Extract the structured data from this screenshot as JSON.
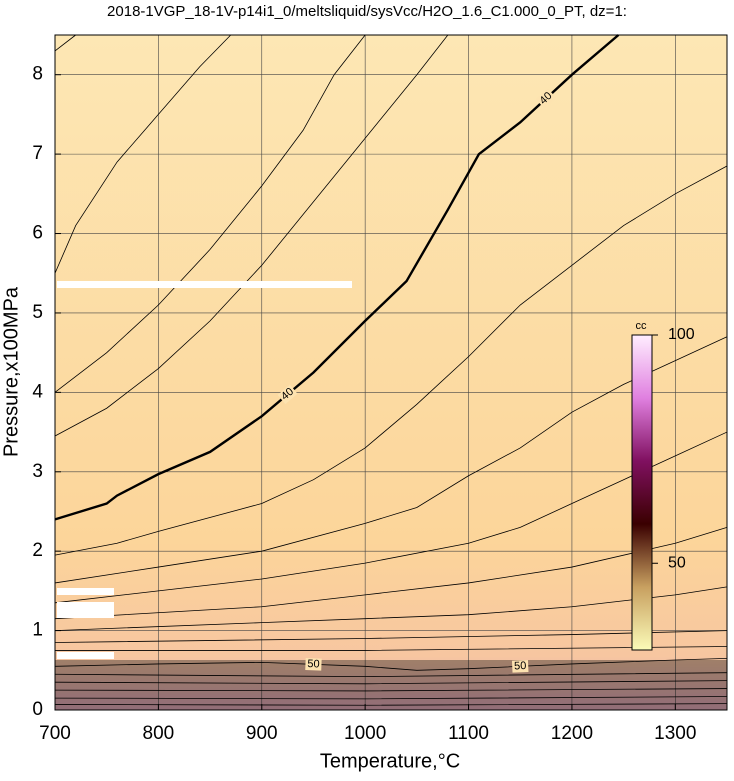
{
  "chart_data": {
    "type": "contour",
    "title": "2018-1VGP_18-1V-p14i1_0/meltsliquid/sysVcc/H2O_1.6_C1.000_0_PT, dz=1:",
    "x_label": "Temperature,°C",
    "y_label": "Pressure,x100MPa",
    "xlim": [
      700,
      1350
    ],
    "xticks": [
      700,
      800,
      900,
      1000,
      1100,
      1200,
      1300
    ],
    "ylim": [
      0,
      8.5
    ],
    "yticks": [
      0,
      1,
      2,
      3,
      4,
      5,
      6,
      7,
      8
    ],
    "grid": true,
    "contours": [
      {
        "level": 40,
        "x": [
          700,
          750,
          760,
          800,
          850,
          900,
          950,
          1000,
          1040,
          1080,
          1110,
          1150,
          1200,
          1245
        ],
        "y": [
          2.4,
          2.6,
          2.7,
          2.97,
          3.25,
          3.7,
          4.25,
          4.9,
          5.4,
          6.3,
          7.0,
          7.4,
          8.0,
          8.5
        ]
      },
      {
        "level": 50,
        "x": [
          700,
          800,
          900,
          1000,
          1050,
          1100,
          1200,
          1300,
          1350
        ],
        "y": [
          0.55,
          0.58,
          0.6,
          0.55,
          0.5,
          0.52,
          0.58,
          0.63,
          0.65
        ]
      },
      {
        "x": [
          700,
          720,
          760,
          800,
          840,
          870
        ],
        "y": [
          5.5,
          6.1,
          6.9,
          7.5,
          8.1,
          8.5
        ]
      },
      {
        "x": [
          700,
          750,
          800,
          850,
          900,
          940,
          970,
          1000
        ],
        "y": [
          4.0,
          4.5,
          5.1,
          5.8,
          6.6,
          7.3,
          8.0,
          8.5
        ]
      },
      {
        "x": [
          700,
          750,
          800,
          850,
          900,
          950,
          1000,
          1050,
          1080
        ],
        "y": [
          3.45,
          3.8,
          4.3,
          4.9,
          5.6,
          6.4,
          7.2,
          8.0,
          8.5
        ]
      },
      {
        "x": [
          700,
          720
        ],
        "y": [
          8.3,
          8.5
        ]
      },
      {
        "x": [
          700,
          760,
          800,
          900,
          950,
          1000,
          1050,
          1100,
          1150,
          1200,
          1250,
          1300,
          1350
        ],
        "y": [
          1.95,
          2.1,
          2.25,
          2.6,
          2.9,
          3.3,
          3.85,
          4.45,
          5.1,
          5.6,
          6.1,
          6.5,
          6.85
        ]
      },
      {
        "x": [
          700,
          800,
          900,
          1000,
          1050,
          1100,
          1150,
          1200,
          1250,
          1300,
          1350
        ],
        "y": [
          1.6,
          1.8,
          2.0,
          2.35,
          2.55,
          2.95,
          3.3,
          3.75,
          4.1,
          4.4,
          4.7
        ]
      },
      {
        "x": [
          700,
          800,
          900,
          1000,
          1100,
          1150,
          1200,
          1250,
          1300,
          1350
        ],
        "y": [
          1.35,
          1.5,
          1.65,
          1.85,
          2.1,
          2.3,
          2.6,
          2.9,
          3.2,
          3.5
        ]
      },
      {
        "x": [
          700,
          900,
          1000,
          1100,
          1200,
          1300,
          1350
        ],
        "y": [
          1.15,
          1.3,
          1.45,
          1.6,
          1.8,
          2.1,
          2.3
        ]
      },
      {
        "x": [
          700,
          900,
          1000,
          1100,
          1200,
          1300,
          1350
        ],
        "y": [
          1.0,
          1.1,
          1.15,
          1.2,
          1.3,
          1.45,
          1.55
        ]
      },
      {
        "x": [
          700,
          1000,
          1200,
          1350
        ],
        "y": [
          0.85,
          0.9,
          0.95,
          1.0
        ]
      },
      {
        "x": [
          700,
          1000,
          1350
        ],
        "y": [
          0.75,
          0.75,
          0.8
        ]
      },
      {
        "x": [
          700,
          1000,
          1350
        ],
        "y": [
          0.45,
          0.42,
          0.47
        ]
      },
      {
        "x": [
          700,
          1000,
          1350
        ],
        "y": [
          0.35,
          0.33,
          0.37
        ]
      },
      {
        "x": [
          700,
          1000,
          1350
        ],
        "y": [
          0.25,
          0.24,
          0.27
        ]
      },
      {
        "x": [
          700,
          1000,
          1350
        ],
        "y": [
          0.15,
          0.14,
          0.17
        ]
      },
      {
        "x": [
          700,
          1000,
          1350
        ],
        "y": [
          0.07,
          0.06,
          0.08
        ]
      }
    ],
    "colorbar": {
      "label": "cc",
      "lim": [
        31,
        100
      ],
      "ticks": [
        50,
        100
      ],
      "colors": [
        "#fbfbb8",
        "#c8a060",
        "#3a0000",
        "#801060",
        "#e080e0",
        "#ffeeff"
      ]
    }
  }
}
